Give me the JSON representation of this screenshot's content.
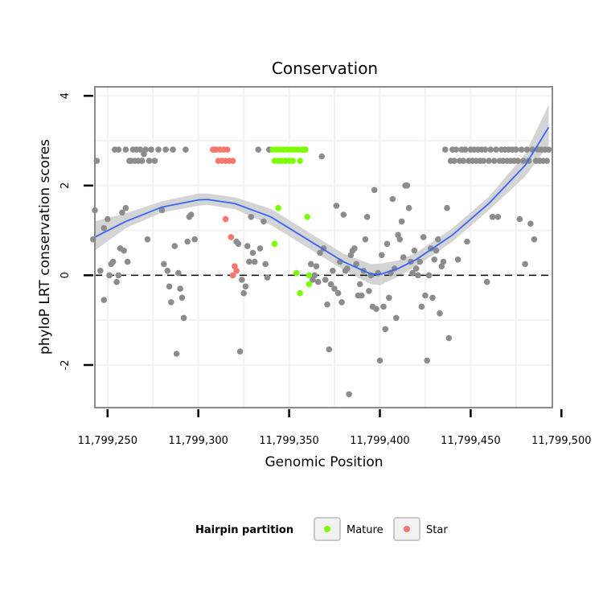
{
  "chart_data": {
    "type": "scatter",
    "title": "Conservation",
    "xlabel": "Genomic Position",
    "ylabel": "phyloP LRT conservation scores",
    "xlim": [
      11799243,
      11799495
    ],
    "ylim": [
      -2.95,
      4.2
    ],
    "x_ticks": [
      11799250,
      11799300,
      11799350,
      11799400,
      11799450,
      11799500
    ],
    "x_tick_labels": [
      "11,799,250",
      "11,799,300",
      "11,799,350",
      "11,799,400",
      "11,799,450",
      "11,799,500"
    ],
    "y_ticks": [
      -2,
      0,
      2,
      4
    ],
    "y_tick_labels": [
      "-2",
      "0",
      "2",
      "4"
    ],
    "reference_line": {
      "y": 0,
      "style": "dashed"
    },
    "legend": {
      "title": "Hairpin partition",
      "position": "bottom",
      "entries": [
        {
          "label": "Mature",
          "color": "#7CFC00"
        },
        {
          "label": "Star",
          "color": "#F8766D"
        }
      ]
    },
    "colors": {
      "other": "#8c8c8c",
      "mature": "#7CFC00",
      "star": "#F8766D",
      "smooth": "#3366FF",
      "ribbon": "#d4d4d4",
      "panel_border": "#8a8a8a",
      "grid": "#f2f2f2"
    },
    "series": [
      {
        "name": "Other",
        "color": "#8c8c8c",
        "points": [
          [
            11799242,
            0.8
          ],
          [
            11799243,
            1.45
          ],
          [
            11799244,
            2.55
          ],
          [
            11799246,
            0.1
          ],
          [
            11799248,
            1.05
          ],
          [
            11799248,
            -0.55
          ],
          [
            11799250,
            1.25
          ],
          [
            11799251,
            0.0
          ],
          [
            11799252,
            0.25
          ],
          [
            11799253,
            0.3
          ],
          [
            11799254,
            2.8
          ],
          [
            11799255,
            -0.15
          ],
          [
            11799256,
            2.8
          ],
          [
            11799256,
            0.0
          ],
          [
            11799257,
            0.6
          ],
          [
            11799258,
            1.4
          ],
          [
            11799259,
            0.55
          ],
          [
            11799260,
            2.8
          ],
          [
            11799260,
            1.5
          ],
          [
            11799261,
            0.3
          ],
          [
            11799262,
            2.55
          ],
          [
            11799263,
            2.55
          ],
          [
            11799264,
            2.8
          ],
          [
            11799265,
            2.55
          ],
          [
            11799266,
            2.8
          ],
          [
            11799267,
            2.55
          ],
          [
            11799268,
            2.8
          ],
          [
            11799269,
            2.55
          ],
          [
            11799270,
            2.7
          ],
          [
            11799271,
            2.8
          ],
          [
            11799272,
            0.8
          ],
          [
            11799273,
            2.55
          ],
          [
            11799274,
            2.8
          ],
          [
            11799276,
            2.55
          ],
          [
            11799278,
            2.8
          ],
          [
            11799280,
            1.45
          ],
          [
            11799281,
            0.25
          ],
          [
            11799282,
            2.8
          ],
          [
            11799283,
            0.1
          ],
          [
            11799284,
            -0.25
          ],
          [
            11799285,
            -0.6
          ],
          [
            11799286,
            2.8
          ],
          [
            11799287,
            0.65
          ],
          [
            11799288,
            -1.75
          ],
          [
            11799289,
            0.05
          ],
          [
            11799290,
            -0.3
          ],
          [
            11799291,
            -0.5
          ],
          [
            11799292,
            -0.95
          ],
          [
            11799293,
            2.8
          ],
          [
            11799294,
            0.75
          ],
          [
            11799295,
            1.3
          ],
          [
            11799296,
            1.35
          ],
          [
            11799298,
            0.8
          ],
          [
            11799321,
            0.75
          ],
          [
            11799322,
            0.7
          ],
          [
            11799323,
            -1.7
          ],
          [
            11799324,
            -0.1
          ],
          [
            11799325,
            -0.4
          ],
          [
            11799326,
            -0.25
          ],
          [
            11799327,
            0.65
          ],
          [
            11799328,
            0.3
          ],
          [
            11799329,
            1.3
          ],
          [
            11799330,
            0.5
          ],
          [
            11799331,
            0.3
          ],
          [
            11799333,
            2.8
          ],
          [
            11799334,
            0.6
          ],
          [
            11799336,
            1.2
          ],
          [
            11799337,
            0.25
          ],
          [
            11799338,
            -0.05
          ],
          [
            11799339,
            2.8
          ],
          [
            11799362,
            0.25
          ],
          [
            11799363,
            -0.1
          ],
          [
            11799364,
            0.0
          ],
          [
            11799365,
            0.2
          ],
          [
            11799366,
            -0.15
          ],
          [
            11799367,
            0.5
          ],
          [
            11799368,
            2.65
          ],
          [
            11799369,
            0.6
          ],
          [
            11799370,
            -0.1
          ],
          [
            11799371,
            -0.65
          ],
          [
            11799372,
            -1.65
          ],
          [
            11799373,
            -0.2
          ],
          [
            11799374,
            0.1
          ],
          [
            11799375,
            -0.3
          ],
          [
            11799376,
            1.55
          ],
          [
            11799377,
            -0.4
          ],
          [
            11799378,
            0.3
          ],
          [
            11799379,
            -0.6
          ],
          [
            11799380,
            1.35
          ],
          [
            11799381,
            0.1
          ],
          [
            11799382,
            0.15
          ],
          [
            11799383,
            -2.65
          ],
          [
            11799384,
            0.45
          ],
          [
            11799385,
            0.55
          ],
          [
            11799386,
            0.6
          ],
          [
            11799387,
            0.25
          ],
          [
            11799388,
            -0.45
          ],
          [
            11799389,
            -0.2
          ],
          [
            11799390,
            -0.45
          ],
          [
            11799391,
            0.1
          ],
          [
            11799392,
            0.8
          ],
          [
            11799393,
            1.3
          ],
          [
            11799394,
            -0.35
          ],
          [
            11799395,
            0.0
          ],
          [
            11799396,
            -0.7
          ],
          [
            11799397,
            1.9
          ],
          [
            11799398,
            -0.75
          ],
          [
            11799399,
            0.05
          ],
          [
            11799400,
            -1.9
          ],
          [
            11799401,
            0.45
          ],
          [
            11799402,
            -0.7
          ],
          [
            11799403,
            -1.2
          ],
          [
            11799404,
            0.7
          ],
          [
            11799405,
            -0.5
          ],
          [
            11799406,
            0.05
          ],
          [
            11799407,
            1.7
          ],
          [
            11799408,
            0.15
          ],
          [
            11799409,
            -0.95
          ],
          [
            11799410,
            0.9
          ],
          [
            11799411,
            0.8
          ],
          [
            11799412,
            1.2
          ],
          [
            11799413,
            0.4
          ],
          [
            11799414,
            2.0
          ],
          [
            11799415,
            2.0
          ],
          [
            11799416,
            1.5
          ],
          [
            11799417,
            0.3
          ],
          [
            11799418,
            0.05
          ],
          [
            11799419,
            0.55
          ],
          [
            11799420,
            0.15
          ],
          [
            11799421,
            0.0
          ],
          [
            11799422,
            0.3
          ],
          [
            11799423,
            -0.7
          ],
          [
            11799424,
            0.85
          ],
          [
            11799425,
            -0.45
          ],
          [
            11799426,
            -1.9
          ],
          [
            11799427,
            0.0
          ],
          [
            11799428,
            0.6
          ],
          [
            11799429,
            -0.5
          ],
          [
            11799430,
            0.35
          ],
          [
            11799431,
            0.55
          ],
          [
            11799432,
            0.8
          ],
          [
            11799433,
            -0.85
          ],
          [
            11799434,
            0.2
          ],
          [
            11799435,
            0.3
          ],
          [
            11799436,
            2.8
          ],
          [
            11799437,
            1.5
          ],
          [
            11799438,
            -1.4
          ],
          [
            11799439,
            2.55
          ],
          [
            11799440,
            2.8
          ],
          [
            11799441,
            2.55
          ],
          [
            11799442,
            2.8
          ],
          [
            11799443,
            0.35
          ],
          [
            11799444,
            2.55
          ],
          [
            11799445,
            2.8
          ],
          [
            11799446,
            2.55
          ],
          [
            11799447,
            2.8
          ],
          [
            11799448,
            0.75
          ],
          [
            11799449,
            2.55
          ],
          [
            11799450,
            2.8
          ],
          [
            11799451,
            2.55
          ],
          [
            11799452,
            2.8
          ],
          [
            11799453,
            2.55
          ],
          [
            11799454,
            2.8
          ],
          [
            11799455,
            2.55
          ],
          [
            11799456,
            2.8
          ],
          [
            11799457,
            2.55
          ],
          [
            11799458,
            2.8
          ],
          [
            11799459,
            -0.15
          ],
          [
            11799460,
            2.55
          ],
          [
            11799461,
            2.8
          ],
          [
            11799462,
            1.3
          ],
          [
            11799463,
            2.55
          ],
          [
            11799464,
            2.8
          ],
          [
            11799465,
            1.3
          ],
          [
            11799466,
            2.55
          ],
          [
            11799467,
            2.8
          ],
          [
            11799468,
            2.55
          ],
          [
            11799469,
            2.8
          ],
          [
            11799470,
            2.55
          ],
          [
            11799471,
            2.8
          ],
          [
            11799472,
            2.55
          ],
          [
            11799473,
            2.8
          ],
          [
            11799474,
            2.55
          ],
          [
            11799475,
            2.8
          ],
          [
            11799476,
            2.55
          ],
          [
            11799477,
            1.25
          ],
          [
            11799478,
            2.8
          ],
          [
            11799479,
            2.55
          ],
          [
            11799480,
            0.25
          ],
          [
            11799481,
            2.8
          ],
          [
            11799482,
            2.55
          ],
          [
            11799483,
            1.15
          ],
          [
            11799484,
            2.8
          ],
          [
            11799485,
            0.8
          ],
          [
            11799486,
            2.55
          ],
          [
            11799487,
            2.8
          ],
          [
            11799488,
            2.55
          ],
          [
            11799489,
            2.8
          ],
          [
            11799490,
            2.55
          ],
          [
            11799491,
            2.8
          ],
          [
            11799492,
            2.55
          ],
          [
            11799493,
            2.8
          ]
        ]
      },
      {
        "name": "Mature",
        "color": "#7CFC00",
        "points": [
          [
            11799341,
            2.8
          ],
          [
            11799342,
            2.55
          ],
          [
            11799342,
            0.7
          ],
          [
            11799343,
            2.8
          ],
          [
            11799344,
            2.55
          ],
          [
            11799344,
            1.5
          ],
          [
            11799345,
            2.8
          ],
          [
            11799346,
            2.55
          ],
          [
            11799347,
            2.8
          ],
          [
            11799348,
            2.55
          ],
          [
            11799349,
            2.8
          ],
          [
            11799350,
            2.55
          ],
          [
            11799351,
            2.8
          ],
          [
            11799352,
            2.55
          ],
          [
            11799353,
            2.8
          ],
          [
            11799354,
            0.05
          ],
          [
            11799355,
            2.8
          ],
          [
            11799356,
            2.55
          ],
          [
            11799356,
            -0.4
          ],
          [
            11799357,
            2.8
          ],
          [
            11799358,
            2.8
          ],
          [
            11799359,
            2.8
          ],
          [
            11799360,
            1.3
          ],
          [
            11799361,
            0.0
          ],
          [
            11799361,
            -0.2
          ]
        ]
      },
      {
        "name": "Star",
        "color": "#F8766D",
        "points": [
          [
            11799308,
            2.8
          ],
          [
            11799309,
            2.8
          ],
          [
            11799310,
            2.8
          ],
          [
            11799311,
            2.55
          ],
          [
            11799312,
            2.8
          ],
          [
            11799313,
            2.55
          ],
          [
            11799314,
            2.8
          ],
          [
            11799315,
            1.25
          ],
          [
            11799315,
            2.55
          ],
          [
            11799316,
            2.8
          ],
          [
            11799317,
            2.55
          ],
          [
            11799318,
            0.85
          ],
          [
            11799319,
            2.55
          ],
          [
            11799319,
            0.0
          ],
          [
            11799320,
            0.2
          ],
          [
            11799321,
            0.1
          ]
        ]
      }
    ],
    "smooth_line": {
      "method": "loess",
      "x": [
        11799243,
        11799260,
        11799280,
        11799300,
        11799305,
        11799320,
        11799340,
        11799360,
        11799380,
        11799395,
        11799400,
        11799410,
        11799420,
        11799440,
        11799460,
        11799480,
        11799493
      ],
      "y": [
        0.85,
        1.2,
        1.52,
        1.68,
        1.69,
        1.6,
        1.3,
        0.8,
        0.3,
        0.03,
        0.02,
        0.15,
        0.35,
        0.9,
        1.6,
        2.45,
        3.3
      ],
      "lower": [
        0.55,
        1.05,
        1.4,
        1.55,
        1.57,
        1.47,
        1.12,
        0.62,
        0.12,
        -0.2,
        -0.22,
        -0.03,
        0.2,
        0.75,
        1.45,
        2.2,
        2.9
      ],
      "upper": [
        1.2,
        1.38,
        1.65,
        1.82,
        1.82,
        1.74,
        1.48,
        0.98,
        0.48,
        0.25,
        0.26,
        0.33,
        0.5,
        1.05,
        1.75,
        2.7,
        3.8
      ]
    }
  }
}
